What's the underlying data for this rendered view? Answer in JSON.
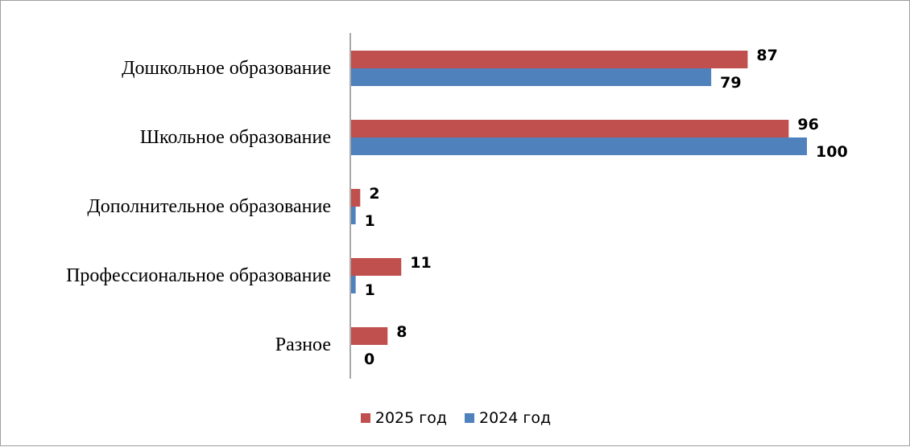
{
  "chart_data": {
    "type": "bar",
    "orientation": "horizontal",
    "categories": [
      "Дошкольное образование",
      "Школьное образование",
      "Дополнительное образование",
      "Профессиональное образование",
      "Разное"
    ],
    "series": [
      {
        "name": "2025 год",
        "color": "#c0504d",
        "values": [
          87,
          96,
          2,
          11,
          8
        ]
      },
      {
        "name": "2024 год",
        "color": "#4f81bd",
        "values": [
          79,
          100,
          1,
          1,
          0
        ]
      }
    ],
    "xlim": [
      0,
      100
    ],
    "legend_position": "bottom",
    "grid": false
  }
}
